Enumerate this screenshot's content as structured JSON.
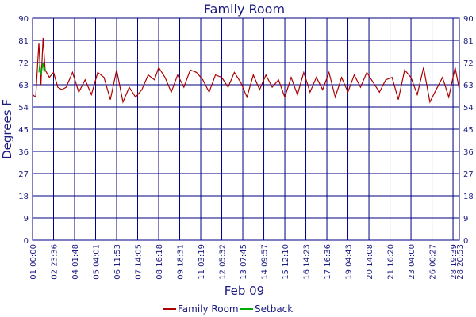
{
  "chart_data": {
    "type": "line",
    "title": "Family Room",
    "xlabel": "Feb 09",
    "ylabel": "Degrees F",
    "ylim": [
      0,
      90
    ],
    "yticks": [
      0,
      9,
      18,
      27,
      36,
      45,
      54,
      63,
      72,
      81,
      90
    ],
    "xticks": [
      "01 00:00",
      "02 23:36",
      "04 01:48",
      "05 04:01",
      "06 11:53",
      "07 14:05",
      "08 16:18",
      "09 18:31",
      "11 03:19",
      "12 05:32",
      "13 07:45",
      "14 09:57",
      "15 12:10",
      "16 14:23",
      "17 16:36",
      "19 04:43",
      "20 14:08",
      "21 16:20",
      "23 04:00",
      "26 00:27",
      "28 19:39",
      "28 20:53"
    ],
    "grid": true,
    "colors": {
      "family_room": "#aa0000",
      "setback": "#00aa00",
      "grid": "#000080",
      "text": "#1a1a80"
    },
    "series": [
      {
        "name": "Family Room",
        "x": [
          0,
          0.15,
          0.3,
          0.4,
          0.5,
          0.6,
          0.8,
          1.0,
          1.2,
          1.4,
          1.6,
          1.9,
          2.2,
          2.5,
          2.8,
          3.1,
          3.4,
          3.7,
          4.0,
          4.3,
          4.6,
          4.9,
          5.2,
          5.5,
          5.8,
          6.0,
          6.3,
          6.6,
          6.9,
          7.2,
          7.5,
          7.8,
          8.1,
          8.4,
          8.7,
          9.0,
          9.3,
          9.6,
          9.9,
          10.2,
          10.5,
          10.8,
          11.1,
          11.4,
          11.7,
          12.0,
          12.3,
          12.6,
          12.9,
          13.2,
          13.5,
          13.8,
          14.1,
          14.4,
          14.7,
          15.0,
          15.3,
          15.6,
          15.9,
          16.2,
          16.5,
          16.8,
          17.1,
          17.4,
          17.7,
          18.0,
          18.3,
          18.6,
          18.9,
          19.2,
          19.5,
          19.8,
          20.1,
          20.4,
          20.7,
          21.0,
          21.3
        ],
        "y": [
          59,
          58,
          80,
          63,
          82,
          69,
          66,
          68,
          62,
          61,
          62,
          68,
          60,
          65,
          59,
          68,
          66,
          57,
          69,
          56,
          62,
          58,
          61,
          67,
          65,
          70,
          66,
          60,
          67,
          62,
          69,
          68,
          65,
          60,
          67,
          66,
          62,
          68,
          64,
          58,
          67,
          61,
          67,
          62,
          65,
          58,
          66,
          59,
          68,
          60,
          66,
          61,
          68,
          58,
          66,
          60,
          67,
          62,
          68,
          64,
          60,
          65,
          66,
          57,
          69,
          66,
          59,
          70,
          56,
          61,
          66,
          58,
          70,
          61,
          69,
          62,
          68
        ]
      },
      {
        "name": "Setback",
        "x": [
          0.3,
          0.35,
          0.4,
          0.5,
          0.55,
          0.6
        ],
        "y": [
          68,
          72,
          67,
          72,
          68,
          70
        ]
      }
    ],
    "legend": [
      "Family Room",
      "Setback"
    ],
    "legend_position": "bottom-center"
  }
}
